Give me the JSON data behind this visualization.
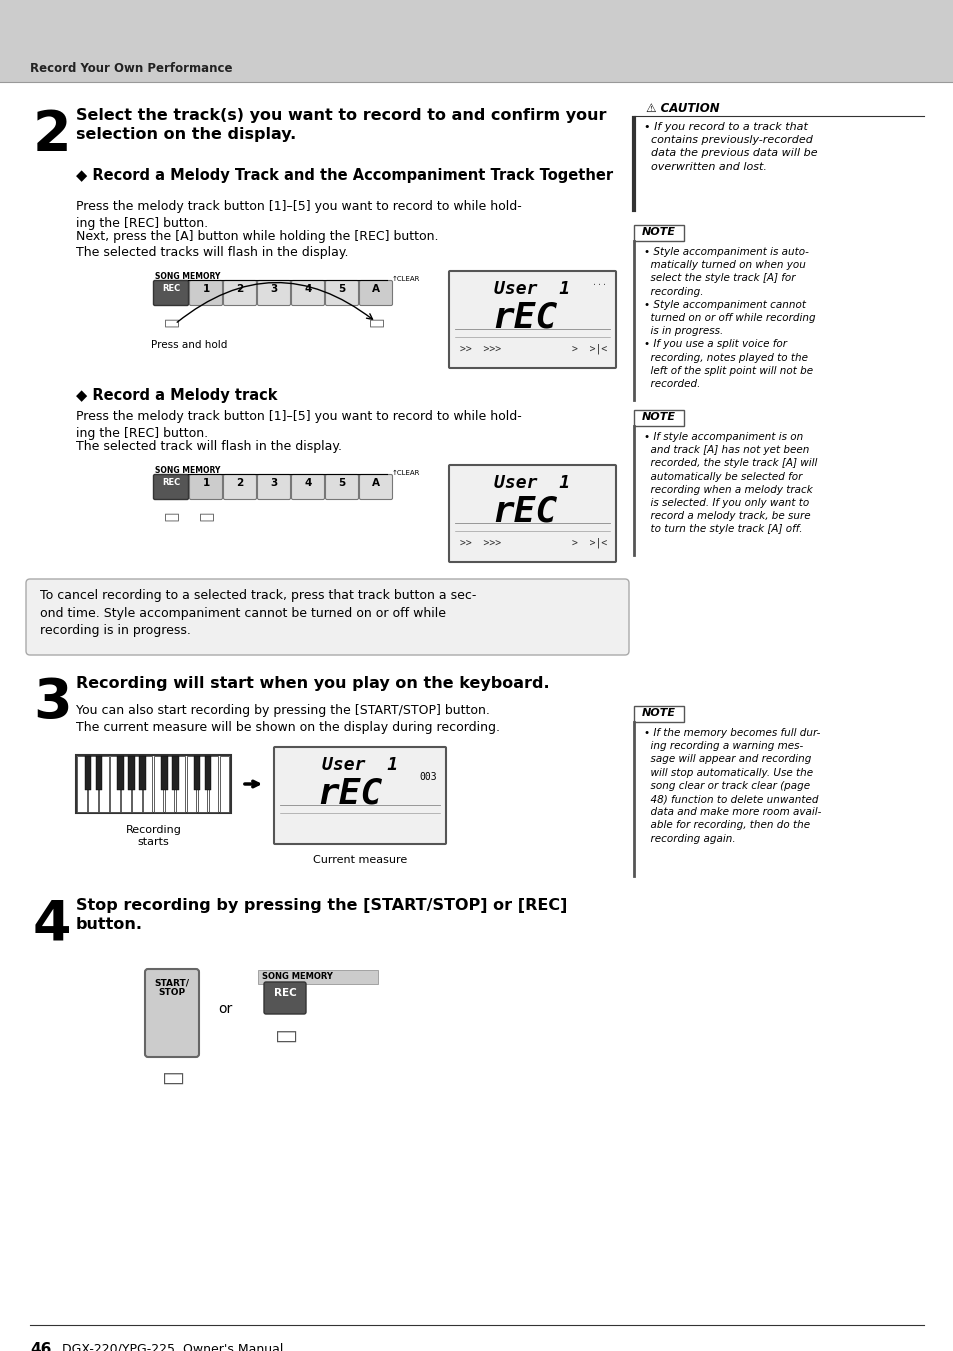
{
  "page_bg": "#ffffff",
  "header_bg": "#cccccc",
  "header_text": "Record Your Own Performance",
  "footer_page": "46",
  "footer_manual": "DGX-220/YPG-225  Owner's Manual",
  "step2_number": "2",
  "step2_title": "Select the track(s) you want to record to and confirm your\nselection on the display.",
  "step2_sub1_title": "◆ Record a Melody Track and the Accompaniment Track Together",
  "step2_sub1_body1": "Press the melody track button [1]–[5] you want to record to while hold-\ning the [REC] button.",
  "step2_sub1_body2": "Next, press the [A] button while holding the [REC] button.",
  "step2_sub1_body3": "The selected tracks will flash in the display.",
  "step2_press_hold": "Press and hold",
  "step2_sub2_title": "◆ Record a Melody track",
  "step2_sub2_body1": "Press the melody track button [1]–[5] you want to record to while hold-\ning the [REC] button.",
  "step2_sub2_body2": "The selected track will flash in the display.",
  "cancel_box_text": "To cancel recording to a selected track, press that track button a sec-\nond time. Style accompaniment cannot be turned on or off while\nrecording is in progress.",
  "step3_number": "3",
  "step3_title": "Recording will start when you play on the keyboard.",
  "step3_body": "You can also start recording by pressing the [START/STOP] button.\nThe current measure will be shown on the display during recording.",
  "step3_label1": "Recording\nstarts",
  "step3_label2": "Current measure",
  "step4_number": "4",
  "step4_title": "Stop recording by pressing the [START/STOP] or [REC]\nbutton.",
  "step4_or": "or",
  "step4_label1": "START/\nSTOP",
  "step4_label2": "SONG MEMORY",
  "step4_label3": "REC",
  "caution_title": "⚠ CAUTION",
  "caution_body": "• If you record to a track that\n  contains previously-recorded\n  data the previous data will be\n  overwritten and lost.",
  "note1_title": "NOTE",
  "note1_body": "• Style accompaniment is auto-\n  matically turned on when you\n  select the style track [A] for\n  recording.\n• Style accompaniment cannot\n  turned on or off while recording\n  is in progress.\n• If you use a split voice for\n  recording, notes played to the\n  left of the split point will not be\n  recorded.",
  "note2_title": "NOTE",
  "note2_body": "• If style accompaniment is on\n  and track [A] has not yet been\n  recorded, the style track [A] will\n  automatically be selected for\n  recording when a melody track\n  is selected. If you only want to\n  record a melody track, be sure\n  to turn the style track [A] off.",
  "note3_title": "NOTE",
  "note3_body": "• If the memory becomes full dur-\n  ing recording a warning mes-\n  sage will appear and recording\n  will stop automatically. Use the\n  song clear or track clear (page\n  48) function to delete unwanted\n  data and make more room avail-\n  able for recording, then do the\n  recording again."
}
